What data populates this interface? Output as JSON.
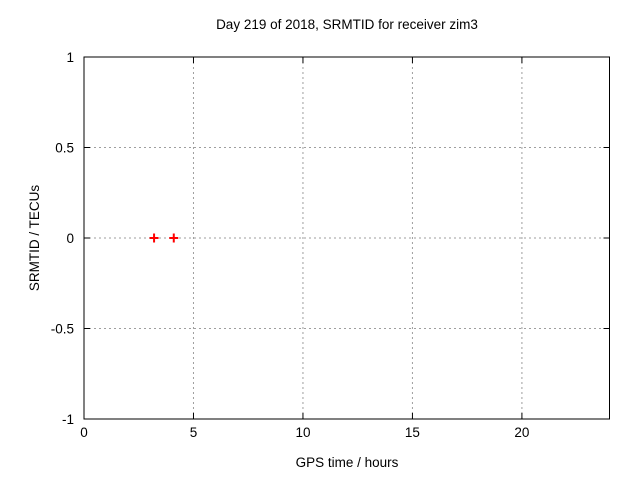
{
  "chart_data": {
    "type": "scatter",
    "title": "Day 219 of 2018, SRMTID for receiver zim3",
    "xlabel": "GPS time / hours",
    "ylabel": "SRMTID / TECUs",
    "xlim": [
      0,
      24
    ],
    "ylim": [
      -1,
      1
    ],
    "xticks": [
      0,
      5,
      10,
      15,
      20
    ],
    "yticks": [
      -1,
      -0.5,
      0,
      0.5,
      1
    ],
    "xtick_labels": [
      "0",
      "5",
      "10",
      "15",
      "20"
    ],
    "ytick_labels": [
      "-1",
      "-0.5",
      "0",
      "0.5",
      "1"
    ],
    "grid": true,
    "grid_style": "dotted",
    "legend": "none",
    "series": [
      {
        "name": "SRMTID",
        "marker": "plus",
        "color": "#ff0000",
        "points": [
          [
            3.2,
            0.0
          ],
          [
            4.1,
            0.0
          ]
        ]
      }
    ],
    "colors": {
      "background": "#ffffff",
      "axis": "#000000",
      "grid": "#9e9e9e",
      "text": "#000000"
    }
  }
}
